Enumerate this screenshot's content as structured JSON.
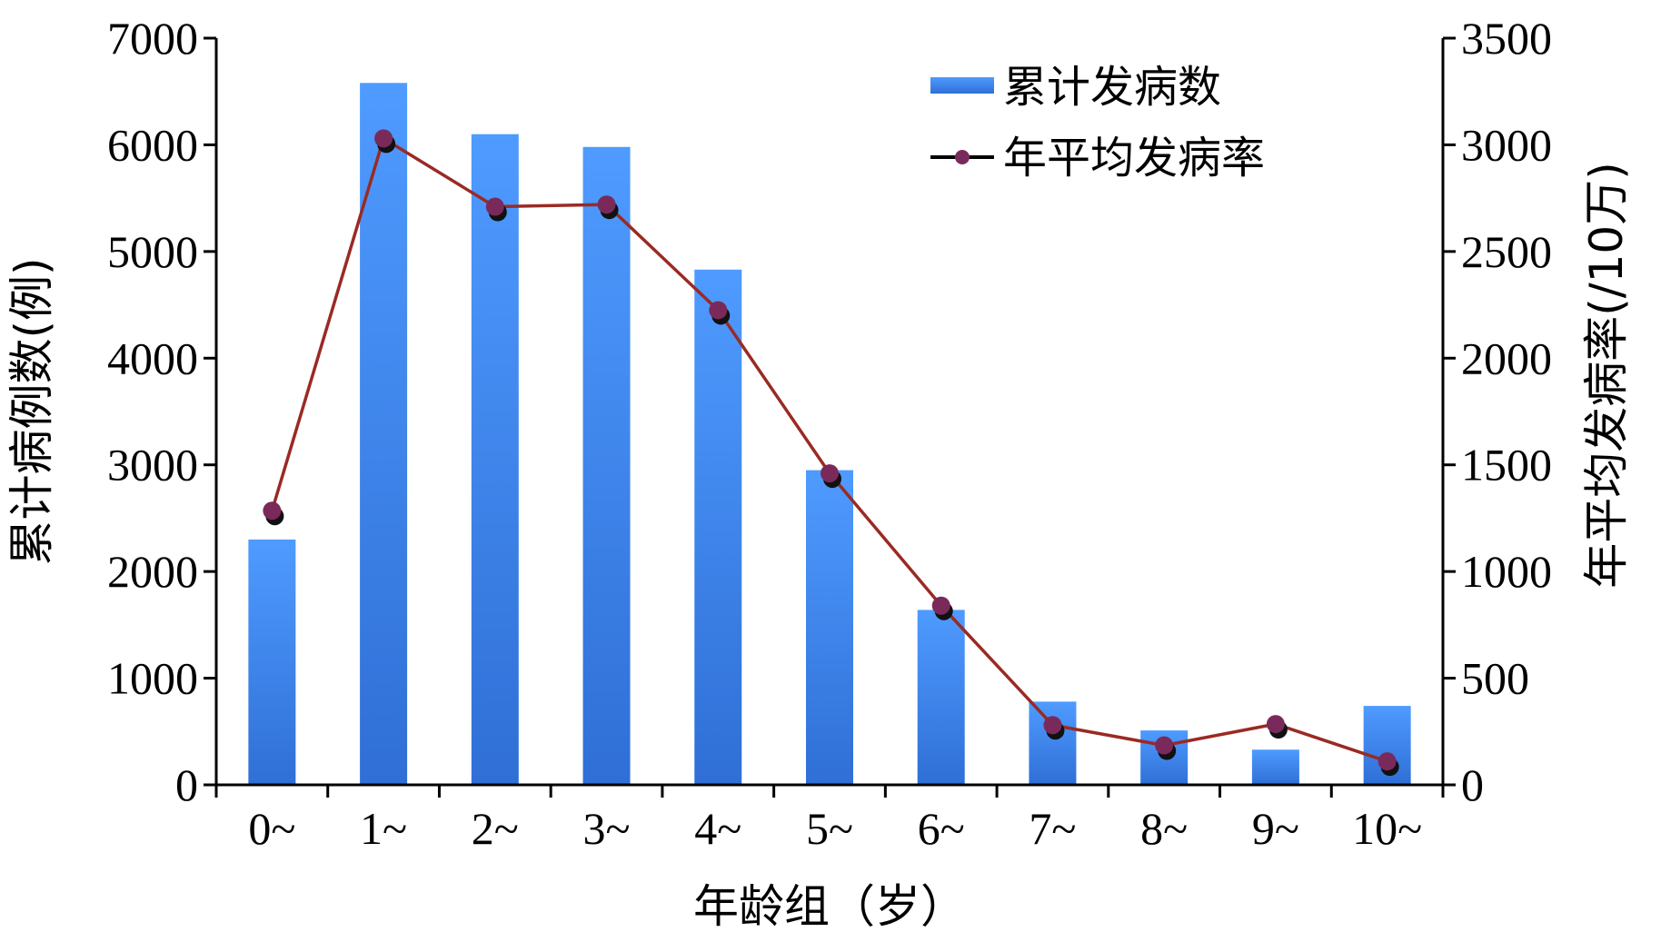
{
  "chart_data": {
    "type": "bar",
    "categories": [
      "0~",
      "1~",
      "2~",
      "3~",
      "4~",
      "5~",
      "6~",
      "7~",
      "8~",
      "9~",
      "10~"
    ],
    "series": [
      {
        "name": "累计发病数",
        "type": "bar",
        "axis": "left",
        "values": [
          2300,
          6580,
          6100,
          5980,
          4830,
          2950,
          1640,
          780,
          510,
          330,
          740
        ],
        "color": "#3f8cf0"
      },
      {
        "name": "年平均发病率",
        "type": "line",
        "axis": "right",
        "values": [
          1285,
          3030,
          2710,
          2720,
          2225,
          1460,
          840,
          280,
          185,
          285,
          110
        ],
        "line_color": "#9a2a24",
        "marker_color": "#7a2a5a"
      }
    ],
    "xlabel": "年龄组（岁）",
    "ylabel_left": "累计病例数(例)",
    "ylabel_right": "年平均发病率(/10万)",
    "ylim_left": [
      0,
      7000
    ],
    "ylim_right": [
      0,
      3500
    ],
    "yticks_left": [
      "0",
      "1000",
      "2000",
      "3000",
      "4000",
      "5000",
      "6000",
      "7000"
    ],
    "yticks_right": [
      "0",
      "500",
      "1000",
      "1500",
      "2000",
      "2500",
      "3000",
      "3500"
    ],
    "grid": false,
    "legend_position": "top-right"
  }
}
